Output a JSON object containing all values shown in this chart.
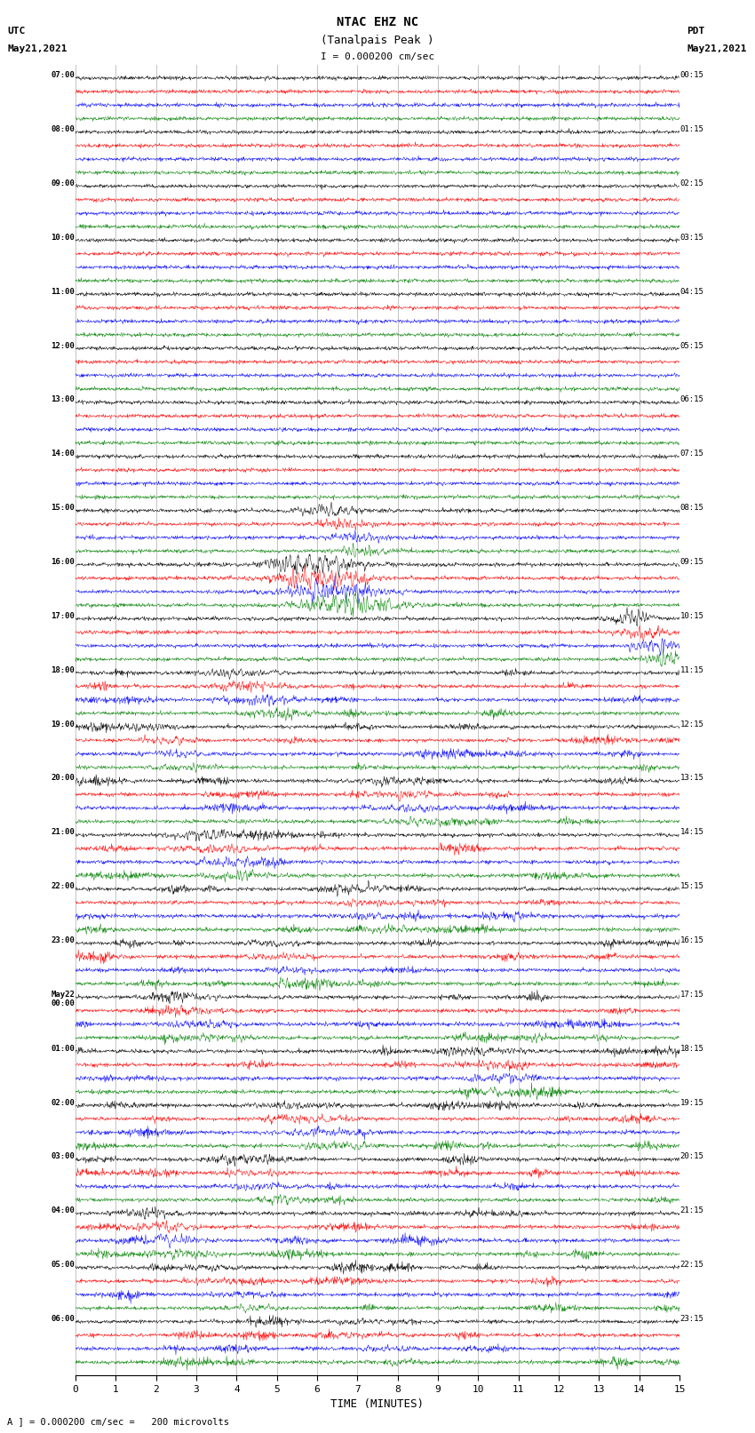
{
  "title_line1": "NTAC EHZ NC",
  "title_line2": "(Tanalpais Peak )",
  "title_line3": "I = 0.000200 cm/sec",
  "xlabel": "TIME (MINUTES)",
  "footer": "A ] = 0.000200 cm/sec =   200 microvolts",
  "x_min": 0,
  "x_max": 15,
  "x_ticks": [
    0,
    1,
    2,
    3,
    4,
    5,
    6,
    7,
    8,
    9,
    10,
    11,
    12,
    13,
    14,
    15
  ],
  "colors": [
    "black",
    "red",
    "blue",
    "green"
  ],
  "num_hour_groups": 24,
  "traces_per_group": 4,
  "noise_amplitude": 0.06,
  "background_color": "white",
  "grid_color": "#888888",
  "utc_labels": [
    "07:00",
    "08:00",
    "09:00",
    "10:00",
    "11:00",
    "12:00",
    "13:00",
    "14:00",
    "15:00",
    "16:00",
    "17:00",
    "18:00",
    "19:00",
    "20:00",
    "21:00",
    "22:00",
    "23:00",
    "May22\n00:00",
    "01:00",
    "02:00",
    "03:00",
    "04:00",
    "05:00",
    "06:00"
  ],
  "pdt_labels": [
    "00:15",
    "01:15",
    "02:15",
    "03:15",
    "04:15",
    "05:15",
    "06:15",
    "07:15",
    "08:15",
    "09:15",
    "10:15",
    "11:15",
    "12:15",
    "13:15",
    "14:15",
    "15:15",
    "16:15",
    "17:15",
    "18:15",
    "19:15",
    "20:15",
    "21:15",
    "22:15",
    "23:15"
  ]
}
